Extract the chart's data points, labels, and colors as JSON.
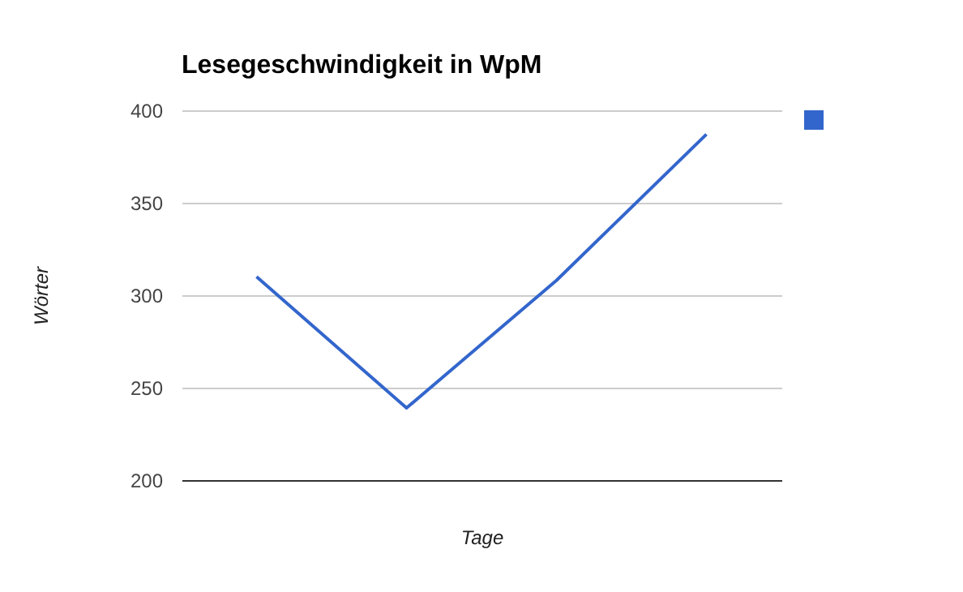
{
  "chart_data": {
    "type": "line",
    "title": "Lesegeschwindigkeit in WpM",
    "xlabel": "Tage",
    "ylabel": "Wörter",
    "categories": [
      null,
      null,
      null,
      null
    ],
    "series": [
      {
        "color": "#3366cc",
        "values": [
          310,
          239,
          308,
          387
        ]
      }
    ],
    "ylim": [
      200,
      400
    ],
    "yticks": [
      200,
      250,
      300,
      350,
      400
    ],
    "grid": "y",
    "tick_labels": "y",
    "marker": "none"
  }
}
